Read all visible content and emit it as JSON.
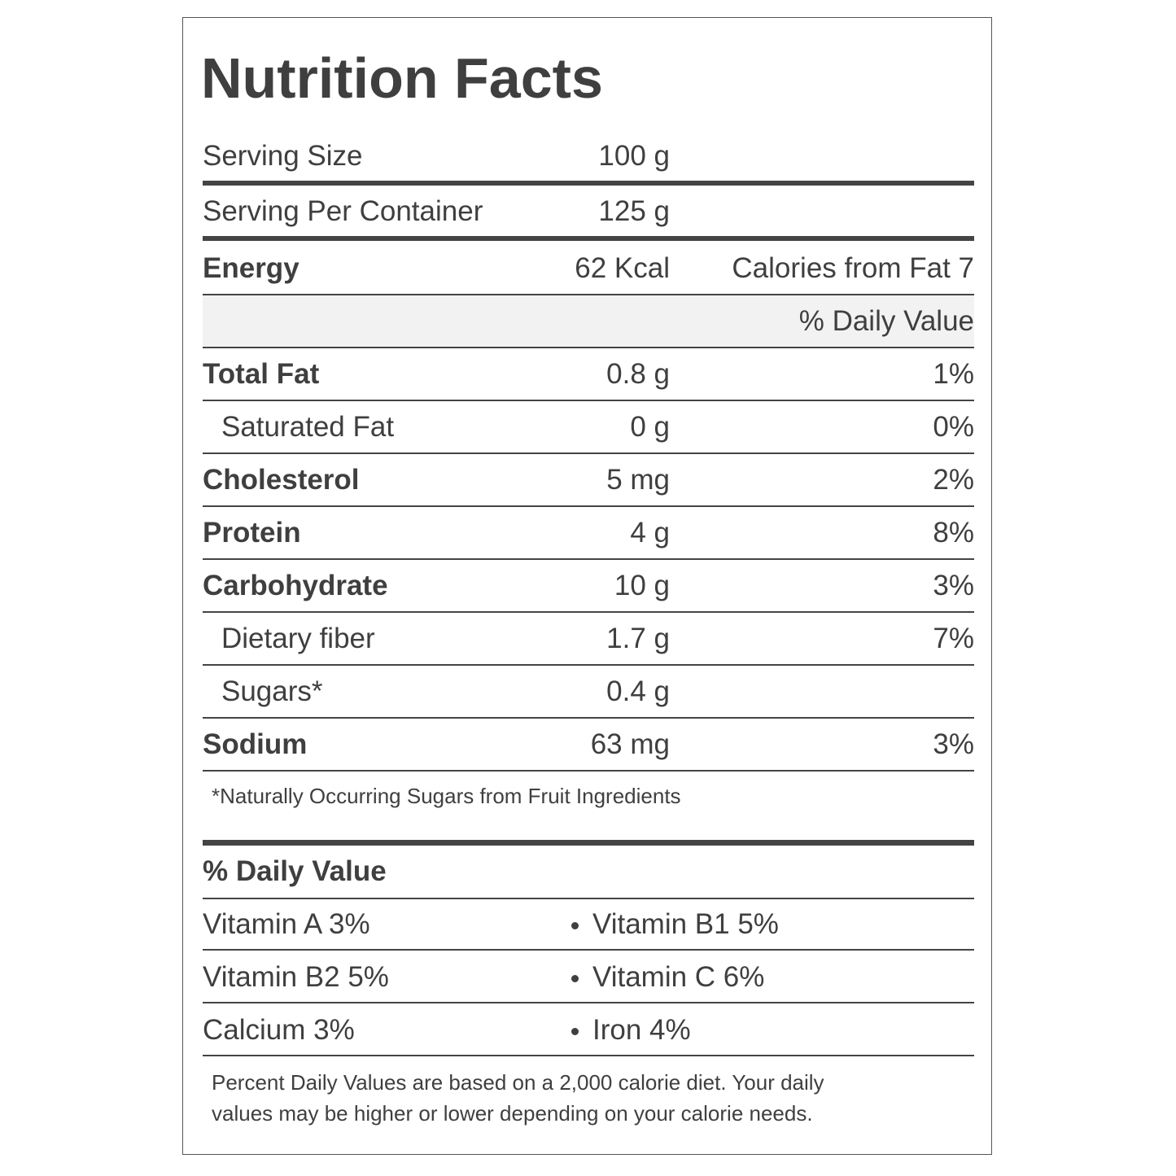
{
  "title": "Nutrition Facts",
  "serving": [
    {
      "label": "Serving Size",
      "amount": "100 g"
    },
    {
      "label": "Serving Per Container",
      "amount": "125 g"
    }
  ],
  "energy": {
    "label": "Energy",
    "amount": "62 Kcal",
    "extra": "Calories from Fat 7"
  },
  "daily_value_header": "% Daily Value",
  "nutrients": [
    {
      "name": "Total Fat",
      "amount": "0.8 g",
      "dv": "1%",
      "bold": true
    },
    {
      "name": "Saturated Fat",
      "amount": "0 g",
      "dv": "0%",
      "indent": true
    },
    {
      "name": "Cholesterol",
      "amount": "5 mg",
      "dv": "2%",
      "bold": true
    },
    {
      "name": "Protein",
      "amount": "4 g",
      "dv": "8%",
      "bold": true
    },
    {
      "name": "Carbohydrate",
      "amount": "10 g",
      "dv": "3%",
      "bold": true
    },
    {
      "name": "Dietary fiber",
      "amount": "1.7 g",
      "dv": "7%",
      "indent": true
    },
    {
      "name": "Sugars*",
      "amount": "0.4 g",
      "indent": true
    },
    {
      "name": "Sodium",
      "amount": "63 mg",
      "dv": "3%",
      "bold": true
    }
  ],
  "footnote": "*Naturally Occurring Sugars from Fruit Ingredients",
  "vitamins_header": "% Daily Value",
  "vitamins": [
    [
      "Vitamin A 3%",
      "Vitamin B1 5%"
    ],
    [
      "Vitamin B2 5%",
      "Vitamin C 6%"
    ],
    [
      "Calcium 3%",
      "Iron 4%"
    ]
  ],
  "note": [
    "Percent Daily Values are based on a 2,000 calorie diet. Your daily",
    "values may be higher or lower depending on your calorie needs."
  ]
}
